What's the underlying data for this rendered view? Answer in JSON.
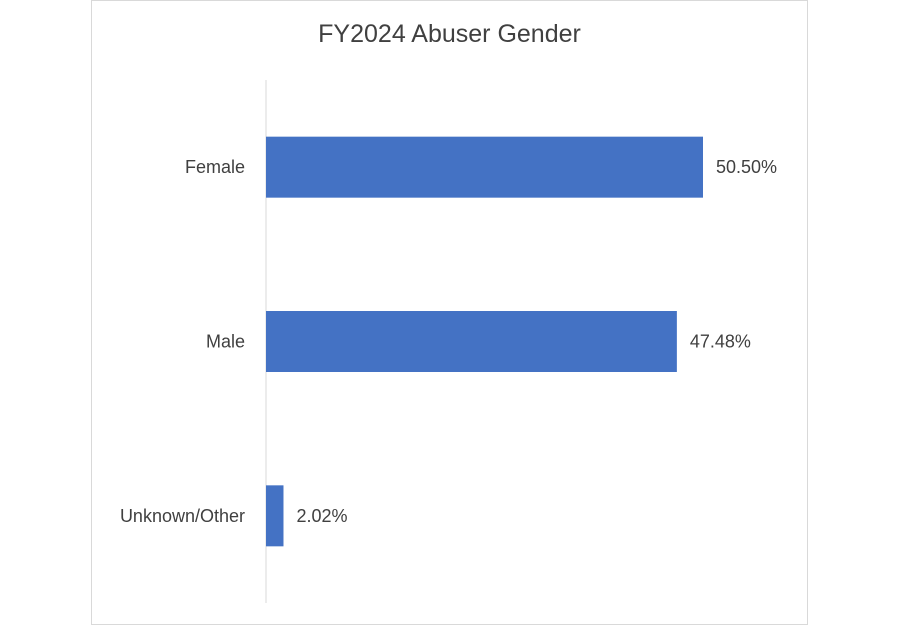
{
  "chart_data": {
    "type": "bar",
    "orientation": "horizontal",
    "title": "FY2024 Abuser Gender",
    "categories": [
      "Female",
      "Male",
      "Unknown/Other"
    ],
    "values": [
      50.5,
      47.48,
      2.02
    ],
    "value_labels": [
      "50.50%",
      "47.48%",
      "2.02%"
    ],
    "unit": "%",
    "xlim": [
      0,
      60
    ],
    "bar_color": "#4472c4",
    "grid": false,
    "legend": "none"
  }
}
